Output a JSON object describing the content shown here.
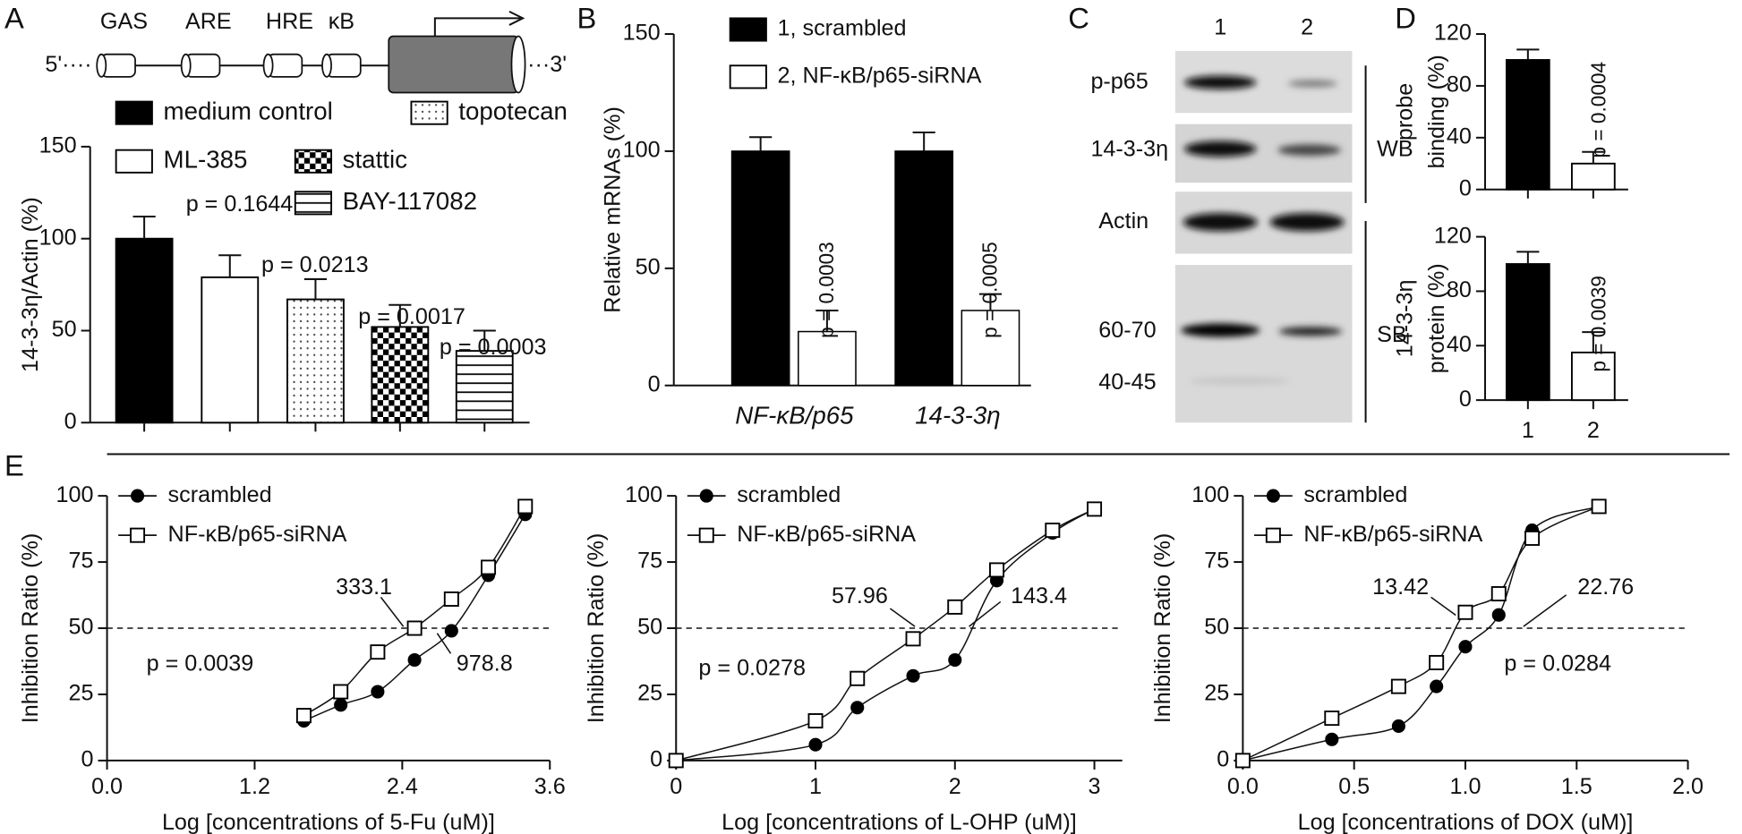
{
  "panel_letters": [
    "A",
    "B",
    "C",
    "D",
    "E"
  ],
  "diagram": {
    "labels": [
      "GAS",
      "ARE",
      "HRE",
      "κB"
    ],
    "five_prime": "5'····",
    "three_prime": "···3'"
  },
  "blot": {
    "lanes": [
      "1",
      "2"
    ],
    "rows": [
      "p-p65",
      "14-3-3η",
      "Actin"
    ],
    "sb_rows": [
      "60-70",
      "40-45"
    ],
    "groups": [
      "WB",
      "SB"
    ]
  },
  "chart_data": [
    {
      "type": "bar",
      "ylabel": "14-3-3η/Actin (%)",
      "legend": true,
      "categories": [
        "medium control",
        "ML-385",
        "topotecan",
        "stattic",
        "BAY-117082"
      ],
      "values": [
        100,
        79,
        67,
        52,
        39
      ],
      "errors": [
        12,
        12,
        11,
        12,
        11
      ],
      "fills": [
        "black",
        "white",
        "dots",
        "checker",
        "stripes"
      ],
      "annotations": [
        "p = 0.1644",
        "p = 0.0213",
        "p = 0.0017",
        "p = 0.0003"
      ],
      "ylim": [
        0,
        150
      ],
      "yticks": [
        0,
        50,
        100,
        150
      ]
    },
    {
      "type": "grouped_bar",
      "ylabel": "Relative mRNAs (%)",
      "categories": [
        "NF-κB/p65",
        "14-3-3η"
      ],
      "series": [
        {
          "name": "1, scrambled",
          "color": "#000000",
          "values": [
            100,
            100
          ],
          "errors": [
            6,
            8
          ]
        },
        {
          "name": "2, NF-κB/p65-siRNA",
          "color": "#ffffff",
          "values": [
            23,
            32
          ],
          "errors": [
            9,
            7
          ]
        }
      ],
      "annotations": [
        "p = 0.0003",
        "p = 0.0005"
      ],
      "ylim": [
        0,
        150
      ],
      "yticks": [
        0,
        50,
        100,
        150
      ]
    },
    {
      "type": "bar",
      "ylabel": [
        "probe",
        "binding (%)"
      ],
      "legend": false,
      "categories": [
        null,
        null
      ],
      "values": [
        100,
        20
      ],
      "errors": [
        8,
        9
      ],
      "fills": [
        "black",
        "white"
      ],
      "annotations": [
        null,
        "p = 0.0004"
      ],
      "ylim": [
        0,
        120
      ],
      "yticks": [
        0,
        40,
        80,
        120
      ]
    },
    {
      "type": "bar",
      "ylabel": [
        "14-3-3η",
        "protein (%)"
      ],
      "legend": false,
      "categories": [
        "1",
        "2"
      ],
      "values": [
        100,
        35
      ],
      "errors": [
        9,
        15
      ],
      "fills": [
        "black",
        "white"
      ],
      "annotations": [
        null,
        "p = 0.0039"
      ],
      "ylim": [
        0,
        120
      ],
      "yticks": [
        0,
        40,
        80,
        120
      ]
    },
    {
      "type": "scatter",
      "xlabel": "Log [concentrations of 5-Fu (uM)]",
      "ylabel": "Inhibition Ratio (%)",
      "xlim": [
        0,
        3.6
      ],
      "xticks": [
        {
          "value": 0,
          "label": "0.0"
        },
        1.2,
        2.4,
        3.6
      ],
      "ylim": [
        0,
        100
      ],
      "yticks": [
        0,
        25,
        50,
        75,
        100
      ],
      "reference_line": 50,
      "series": [
        {
          "name": "scrambled",
          "marker": "filled-circle",
          "x": [
            1.6,
            1.9,
            2.2,
            2.5,
            2.8,
            3.1,
            3.4
          ],
          "values": [
            15,
            21,
            26,
            38,
            49,
            70,
            93
          ]
        },
        {
          "name": "NF-κB/p65-siRNA",
          "marker": "open-square",
          "x": [
            1.6,
            1.9,
            2.2,
            2.5,
            2.8,
            3.1,
            3.4
          ],
          "values": [
            17,
            26,
            41,
            50,
            61,
            73,
            96
          ]
        }
      ],
      "annotations": [
        "333.1",
        "978.8",
        "p = 0.0039"
      ]
    },
    {
      "type": "scatter",
      "xlabel": "Log [concentrations of L-OHP (uM)]",
      "ylabel": "Inhibition Ratio (%)",
      "xlim": [
        0,
        3.2
      ],
      "xticks": [
        0,
        1,
        2,
        3
      ],
      "ylim": [
        0,
        100
      ],
      "yticks": [
        0,
        25,
        50,
        75,
        100
      ],
      "reference_line": 50,
      "series": [
        {
          "name": "scrambled",
          "marker": "filled-circle",
          "x": [
            0,
            1,
            1.3,
            1.7,
            2,
            2.3,
            2.7,
            3
          ],
          "values": [
            0,
            6,
            20,
            32,
            38,
            68,
            86,
            95
          ]
        },
        {
          "name": "NF-κB/p65-siRNA",
          "marker": "open-square",
          "x": [
            0,
            1,
            1.3,
            1.7,
            2,
            2.3,
            2.7,
            3
          ],
          "values": [
            0,
            15,
            31,
            46,
            58,
            72,
            87,
            95
          ]
        }
      ],
      "annotations": [
        "57.96",
        "143.4",
        "p = 0.0278"
      ]
    },
    {
      "type": "scatter",
      "xlabel": "Log [concentrations of DOX (uM)]",
      "ylabel": "Inhibition Ratio (%)",
      "xlim": [
        0,
        2
      ],
      "xticks": [
        {
          "value": 0,
          "label": "0.0"
        },
        0.5,
        {
          "value": 1,
          "label": "1.0"
        },
        1.5,
        {
          "value": 2,
          "label": "2.0"
        }
      ],
      "ylim": [
        0,
        100
      ],
      "yticks": [
        0,
        25,
        50,
        75,
        100
      ],
      "reference_line": 50,
      "series": [
        {
          "name": "scrambled",
          "marker": "filled-circle",
          "x": [
            0,
            0.4,
            0.7,
            0.87,
            1,
            1.15,
            1.3,
            1.6
          ],
          "values": [
            0,
            8,
            13,
            28,
            43,
            55,
            87,
            96
          ]
        },
        {
          "name": "NF-κB/p65-siRNA",
          "marker": "open-square",
          "x": [
            0,
            0.4,
            0.7,
            0.87,
            1,
            1.15,
            1.3,
            1.6
          ],
          "values": [
            0,
            16,
            28,
            37,
            56,
            63,
            84,
            96
          ]
        }
      ],
      "annotations": [
        "13.42",
        "22.76",
        "p = 0.0284"
      ]
    }
  ]
}
